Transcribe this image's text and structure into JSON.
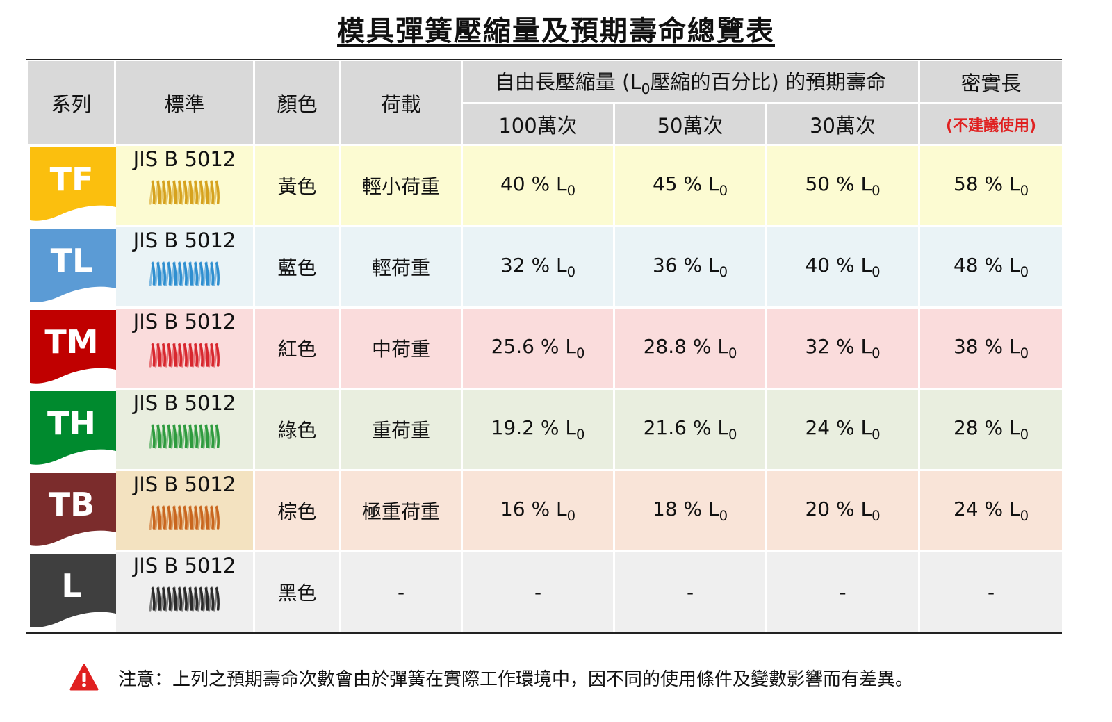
{
  "title": "模具彈簧壓縮量及預期壽命總覽表",
  "headers": {
    "series": "系列",
    "standard": "標準",
    "color": "顏色",
    "load": "荷載",
    "group_prefix": "自由長壓縮量 (L",
    "group_sub": "0",
    "group_suffix": "壓縮的百分比) 的預期壽命",
    "cycles": [
      "100萬次",
      "50萬次",
      "30萬次"
    ],
    "solid": "密實長",
    "solid_note": "(不建議使用)"
  },
  "unit_symbol": "L",
  "unit_sub": "0",
  "rows": [
    {
      "series": "TF",
      "badge_color": "#fbbf0e",
      "spring_color": "#d6a21e",
      "standard": "JIS B 5012",
      "color": "黃色",
      "load": "輕小荷重",
      "v100": "40 %",
      "v50": "45 %",
      "v30": "50 %",
      "solid": "58 %",
      "row_bg": "#fcfbd2",
      "std_bg": "#fcfbd2"
    },
    {
      "series": "TL",
      "badge_color": "#5b9bd5",
      "spring_color": "#2f8fd0",
      "standard": "JIS B 5012",
      "color": "藍色",
      "load": "輕荷重",
      "v100": "32 %",
      "v50": "36 %",
      "v30": "40 %",
      "solid": "48 %",
      "row_bg": "#eaf3f6",
      "std_bg": "#eaf3f6"
    },
    {
      "series": "TM",
      "badge_color": "#c00000",
      "spring_color": "#d8272e",
      "standard": "JIS B 5012",
      "color": "紅色",
      "load": "中荷重",
      "v100": "25.6 %",
      "v50": "28.8 %",
      "v30": "32 %",
      "solid": "38 %",
      "row_bg": "#fadcdc",
      "std_bg": "#fadcdc"
    },
    {
      "series": "TH",
      "badge_color": "#008a2e",
      "spring_color": "#2e9b3e",
      "standard": "JIS B 5012",
      "color": "綠色",
      "load": "重荷重",
      "v100": "19.2 %",
      "v50": "21.6 %",
      "v30": "24 %",
      "solid": "28 %",
      "row_bg": "#e9eedf",
      "std_bg": "#e9eedf"
    },
    {
      "series": "TB",
      "badge_color": "#7b2c2c",
      "spring_color": "#c9661e",
      "standard": "JIS B 5012",
      "color": "棕色",
      "load": "極重荷重",
      "v100": "16 %",
      "v50": "18 %",
      "v30": "20 %",
      "solid": "24 %",
      "row_bg": "#f9e4d8",
      "std_bg": "#f3e2c0"
    },
    {
      "series": "L",
      "badge_color": "#3f3f3f",
      "spring_color": "#2a2a2a",
      "standard": "JIS B 5012",
      "color": "黑色",
      "load": "-",
      "v100": "-",
      "v50": "-",
      "v30": "-",
      "solid": "-",
      "row_bg": "#efefef",
      "std_bg": "#efefef",
      "no_unit": true
    }
  ],
  "note": "注意：上列之預期壽命次數會由於彈簧在實際工作環境中，因不同的使用條件及變數影響而有差異。",
  "icons": {
    "warning": "warning-triangle-icon",
    "spring": "coil-spring-icon"
  },
  "colors": {
    "header_bg": "#d9d9d9",
    "note_red": "#e02020",
    "warning_red": "#e02020"
  }
}
